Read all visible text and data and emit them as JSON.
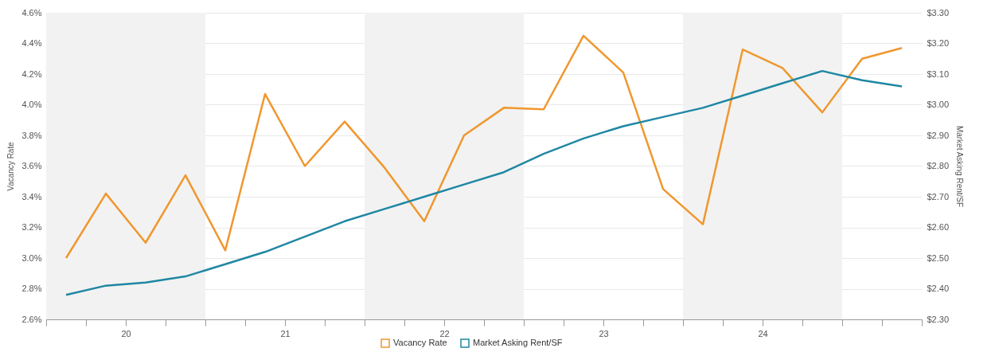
{
  "chart_data": {
    "type": "line",
    "x": [
      19.625,
      19.875,
      20.125,
      20.375,
      20.625,
      20.875,
      21.125,
      21.375,
      21.625,
      21.875,
      22.125,
      22.375,
      22.625,
      22.875,
      23.125,
      23.375,
      23.625,
      23.875,
      24.125,
      24.375,
      24.625,
      24.875
    ],
    "series": [
      {
        "name": "Vacancy Rate",
        "color": "#f0972e",
        "axis": "y",
        "values": [
          3.0,
          3.42,
          3.1,
          3.54,
          3.05,
          4.07,
          3.6,
          3.89,
          3.59,
          3.24,
          3.8,
          3.98,
          3.97,
          4.45,
          4.21,
          3.45,
          3.22,
          4.36,
          4.24,
          3.95,
          4.3,
          4.37
        ]
      },
      {
        "name": "Market Asking Rent/SF",
        "color": "#1f87a3",
        "axis": "y2",
        "values": [
          2.38,
          2.41,
          2.42,
          2.44,
          2.48,
          2.52,
          2.57,
          2.62,
          2.66,
          2.7,
          2.74,
          2.78,
          2.84,
          2.89,
          2.93,
          2.96,
          2.99,
          3.03,
          3.07,
          3.11,
          3.08,
          3.06
        ]
      }
    ],
    "ylabel": "Vacancy Rate",
    "y2label": "Market Asking Rent/SF",
    "xlim": [
      19.5,
      25
    ],
    "xticks": [
      {
        "value": 19.5,
        "label": null
      },
      {
        "value": 19.75,
        "label": null
      },
      20,
      {
        "value": 20.25,
        "label": null
      },
      {
        "value": 20.5,
        "label": null
      },
      {
        "value": 20.75,
        "label": null
      },
      21,
      {
        "value": 21.25,
        "label": null
      },
      {
        "value": 21.5,
        "label": null
      },
      {
        "value": 21.75,
        "label": null
      },
      22,
      {
        "value": 22.25,
        "label": null
      },
      {
        "value": 22.5,
        "label": null
      },
      {
        "value": 22.75,
        "label": null
      },
      23,
      {
        "value": 23.25,
        "label": null
      },
      {
        "value": 23.5,
        "label": null
      },
      {
        "value": 23.75,
        "label": null
      },
      24,
      {
        "value": 24.25,
        "label": null
      },
      {
        "value": 24.5,
        "label": null
      },
      {
        "value": 24.75,
        "label": null
      },
      {
        "value": 25,
        "label": null
      }
    ],
    "ylim": [
      2.6,
      4.6
    ],
    "yticks": [
      {
        "value": 2.6,
        "label": "2.6%"
      },
      {
        "value": 2.8,
        "label": "2.8%"
      },
      {
        "value": 3.0,
        "label": "3.0%"
      },
      {
        "value": 3.2,
        "label": "3.2%"
      },
      {
        "value": 3.4,
        "label": "3.4%"
      },
      {
        "value": 3.6,
        "label": "3.6%"
      },
      {
        "value": 3.8,
        "label": "3.8%"
      },
      {
        "value": 4.0,
        "label": "4.0%"
      },
      {
        "value": 4.2,
        "label": "4.2%"
      },
      {
        "value": 4.4,
        "label": "4.4%"
      },
      {
        "value": 4.6,
        "label": "4.6%"
      }
    ],
    "y2lim": [
      2.3,
      3.3
    ],
    "y2ticks": [
      {
        "value": 2.3,
        "label": "$2.30"
      },
      {
        "value": 2.4,
        "label": "$2.40"
      },
      {
        "value": 2.5,
        "label": "$2.50"
      },
      {
        "value": 2.6,
        "label": "$2.60"
      },
      {
        "value": 2.7,
        "label": "$2.70"
      },
      {
        "value": 2.8,
        "label": "$2.80"
      },
      {
        "value": 2.9,
        "label": "$2.90"
      },
      {
        "value": 3.0,
        "label": "$3.00"
      },
      {
        "value": 3.1,
        "label": "$3.10"
      },
      {
        "value": 3.2,
        "label": "$3.20"
      },
      {
        "value": 3.3,
        "label": "$3.30"
      }
    ],
    "bands": [
      {
        "axis": "x",
        "from": 19.5,
        "to": 20.5,
        "color": "#f2f2f2"
      },
      {
        "axis": "x",
        "from": 21.5,
        "to": 22.5,
        "color": "#f2f2f2"
      },
      {
        "axis": "x",
        "from": 23.5,
        "to": 24.5,
        "color": "#f2f2f2"
      }
    ],
    "grid": "y",
    "legend": "bottom",
    "marker": "none",
    "line_style": "solid"
  }
}
